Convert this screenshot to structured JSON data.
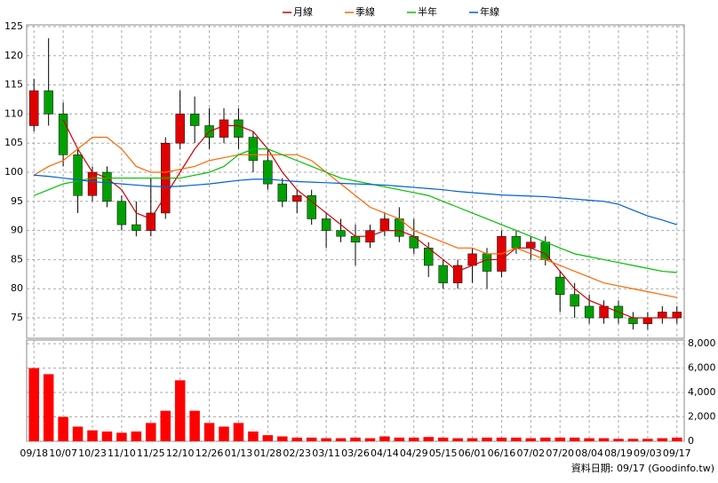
{
  "chart_data": {
    "type": "candlestick",
    "legend": [
      "月線",
      "季線",
      "半年",
      "年線"
    ],
    "footer": "資料日期: 09/17 (Goodinfo.tw)",
    "categories": [
      "09/18",
      null,
      "10/07",
      null,
      "10/23",
      null,
      "11/10",
      null,
      "11/25",
      null,
      "12/10",
      null,
      "12/26",
      null,
      "01/13",
      null,
      "01/28",
      null,
      "02/23",
      null,
      "03/11",
      null,
      "03/26",
      null,
      "04/14",
      null,
      "04/29",
      null,
      "05/15",
      null,
      "06/01",
      null,
      "06/16",
      null,
      "07/02",
      null,
      "07/20",
      null,
      "08/04",
      null,
      "08/19",
      null,
      "09/03",
      null,
      "09/17"
    ],
    "open": [
      108,
      114,
      110,
      103,
      96,
      100,
      95,
      91,
      90,
      93,
      105,
      110,
      108,
      106,
      109,
      106,
      102,
      98,
      95,
      96,
      92,
      90,
      89,
      88,
      90,
      92,
      89,
      87,
      84,
      81,
      84,
      86,
      83,
      89,
      87,
      88,
      82,
      79,
      77,
      75,
      77,
      75,
      74,
      75,
      75
    ],
    "high": [
      116,
      123,
      112,
      104,
      101,
      101,
      96,
      95,
      99,
      106,
      114,
      113,
      111,
      111,
      111,
      107,
      104,
      99,
      97,
      97,
      93,
      92,
      91,
      91,
      93,
      94,
      92,
      88,
      85,
      85,
      87,
      87,
      90,
      90,
      89,
      89,
      83,
      81,
      79,
      78,
      78,
      76,
      76,
      77,
      77
    ],
    "low": [
      107,
      108,
      101,
      93,
      95,
      94,
      90,
      89,
      89,
      92,
      104,
      105,
      104,
      105,
      104,
      100,
      97,
      94,
      93,
      91,
      87,
      88,
      84,
      87,
      89,
      88,
      86,
      82,
      80,
      80,
      81,
      80,
      82,
      86,
      85,
      84,
      76,
      75,
      74,
      74,
      74,
      73,
      73,
      74,
      74
    ],
    "close": [
      114,
      110,
      103,
      96,
      100,
      95,
      91,
      90,
      93,
      105,
      110,
      108,
      106,
      109,
      106,
      102,
      98,
      95,
      96,
      92,
      90,
      89,
      88,
      90,
      92,
      89,
      87,
      84,
      81,
      84,
      86,
      83,
      89,
      87,
      88,
      85,
      79,
      77,
      75,
      77,
      75,
      74,
      75,
      76,
      76
    ],
    "up_color": "#e00000",
    "down_color": "#00a000",
    "volume": [
      6000,
      5500,
      2000,
      1200,
      900,
      800,
      700,
      800,
      1500,
      2500,
      5000,
      2500,
      1500,
      1200,
      1500,
      800,
      500,
      400,
      300,
      300,
      250,
      250,
      300,
      250,
      400,
      300,
      300,
      350,
      300,
      250,
      250,
      300,
      300,
      300,
      250,
      300,
      300,
      300,
      250,
      250,
      200,
      200,
      200,
      250,
      300
    ],
    "volume_color": "#ff0000",
    "series": [
      {
        "name": "月線",
        "color": "#d00000",
        "values": [
          null,
          null,
          109,
          104,
          100,
          99,
          97,
          93,
          92,
          96,
          100,
          104,
          107,
          108,
          108,
          107,
          104,
          100,
          97,
          95,
          93,
          91,
          89,
          89,
          90,
          90,
          89,
          87,
          85,
          83,
          84,
          85,
          85,
          87,
          87,
          86,
          83,
          80,
          78,
          77,
          76,
          75,
          75,
          75,
          75
        ]
      },
      {
        "name": "季線",
        "color": "#ff6600",
        "values": [
          99.5,
          101,
          102,
          104,
          106,
          106,
          104,
          101,
          100,
          100,
          100.5,
          101,
          102,
          102.5,
          103,
          103,
          103,
          103,
          103,
          102,
          100,
          98,
          96,
          94,
          93,
          92,
          90,
          89,
          88,
          87,
          87,
          86,
          86,
          87,
          86,
          85,
          84,
          83,
          82,
          81,
          80.5,
          80,
          79.5,
          79,
          78.5
        ]
      },
      {
        "name": "半年",
        "color": "#00c000",
        "values": [
          96,
          97,
          98,
          98.5,
          99,
          99,
          99,
          99,
          99,
          99,
          99,
          99.5,
          100,
          101,
          103,
          104,
          104,
          103,
          102,
          101,
          100,
          99,
          98.5,
          98,
          97.5,
          97,
          96.5,
          96,
          95,
          94,
          93,
          92,
          91,
          90,
          89,
          88,
          87,
          86,
          85.5,
          85,
          84.5,
          84,
          83.5,
          83,
          82.8
        ]
      },
      {
        "name": "年線",
        "color": "#0060d0",
        "values": [
          99.5,
          99.3,
          99,
          98.7,
          98.4,
          98.2,
          98,
          97.8,
          97.6,
          97.5,
          97.6,
          97.8,
          98,
          98.3,
          98.6,
          98.8,
          98.8,
          98.6,
          98.4,
          98.3,
          98.2,
          98.1,
          98,
          97.9,
          97.8,
          97.6,
          97.4,
          97.2,
          97,
          96.7,
          96.5,
          96.3,
          96.1,
          96,
          95.9,
          95.8,
          95.6,
          95.4,
          95.2,
          95,
          94.5,
          93.5,
          92.5,
          91.8,
          91
        ]
      }
    ],
    "ylim": [
      71.5,
      125.3
    ],
    "yticks": [
      75,
      80,
      85,
      90,
      95,
      100,
      105,
      110,
      115,
      120,
      125
    ],
    "y2lim": [
      0,
      8300
    ],
    "y2ticks": [
      0,
      {
        "value": 2000,
        "label": "2,000"
      },
      {
        "value": 4000,
        "label": "4,000"
      },
      {
        "value": 6000,
        "label": "6,000"
      },
      {
        "value": 8000,
        "label": "8,000"
      }
    ],
    "grid": true
  }
}
